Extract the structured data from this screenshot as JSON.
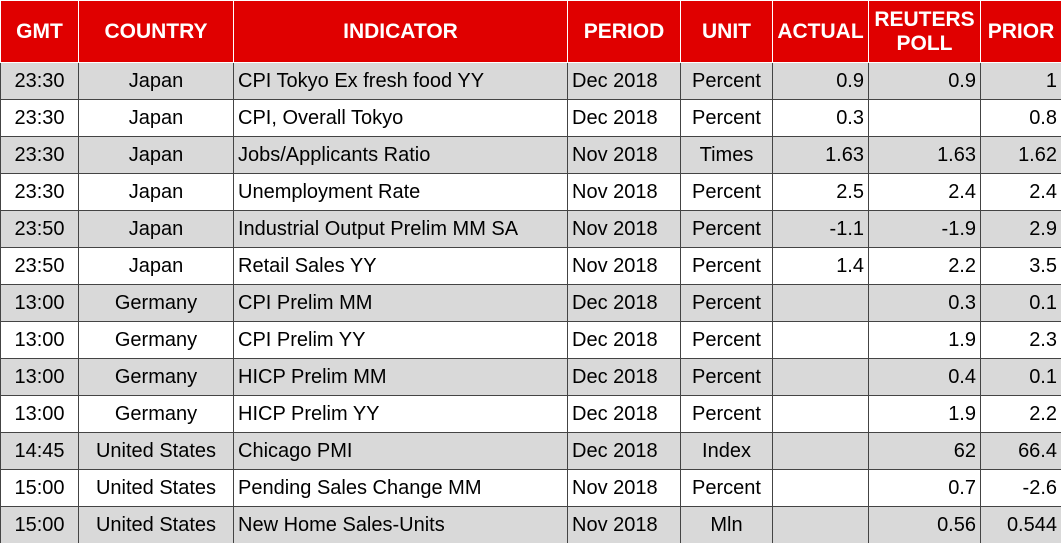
{
  "table": {
    "headers": [
      "GMT",
      "COUNTRY",
      "INDICATOR",
      "PERIOD",
      "UNIT",
      "ACTUAL",
      "REUTERS POLL",
      "PRIOR"
    ],
    "rows": [
      [
        "23:30",
        "Japan",
        "CPI Tokyo Ex fresh food YY",
        "Dec 2018",
        "Percent",
        "0.9",
        "0.9",
        "1"
      ],
      [
        "23:30",
        "Japan",
        "CPI, Overall Tokyo",
        "Dec 2018",
        "Percent",
        "0.3",
        null,
        "0.8"
      ],
      [
        "23:30",
        "Japan",
        "Jobs/Applicants Ratio",
        "Nov 2018",
        "Times",
        "1.63",
        "1.63",
        "1.62"
      ],
      [
        "23:30",
        "Japan",
        "Unemployment Rate",
        "Nov 2018",
        "Percent",
        "2.5",
        "2.4",
        "2.4"
      ],
      [
        "23:50",
        "Japan",
        "Industrial Output Prelim MM SA",
        "Nov 2018",
        "Percent",
        "-1.1",
        "-1.9",
        "2.9"
      ],
      [
        "23:50",
        "Japan",
        "Retail Sales YY",
        "Nov 2018",
        "Percent",
        "1.4",
        "2.2",
        "3.5"
      ],
      [
        "13:00",
        "Germany",
        "CPI Prelim MM",
        "Dec 2018",
        "Percent",
        null,
        "0.3",
        "0.1"
      ],
      [
        "13:00",
        "Germany",
        "CPI Prelim YY",
        "Dec 2018",
        "Percent",
        null,
        "1.9",
        "2.3"
      ],
      [
        "13:00",
        "Germany",
        "HICP Prelim MM",
        "Dec 2018",
        "Percent",
        null,
        "0.4",
        "0.1"
      ],
      [
        "13:00",
        "Germany",
        "HICP Prelim YY",
        "Dec 2018",
        "Percent",
        null,
        "1.9",
        "2.2"
      ],
      [
        "14:45",
        "United States",
        "Chicago PMI",
        "Dec 2018",
        "Index",
        null,
        "62",
        "66.4"
      ],
      [
        "15:00",
        "United States",
        "Pending Sales Change MM",
        "Nov 2018",
        "Percent",
        null,
        "0.7",
        "-2.6"
      ],
      [
        "15:00",
        "United States",
        "New Home Sales-Units",
        "Nov 2018",
        "Mln",
        null,
        "0.56",
        "0.544"
      ]
    ]
  }
}
